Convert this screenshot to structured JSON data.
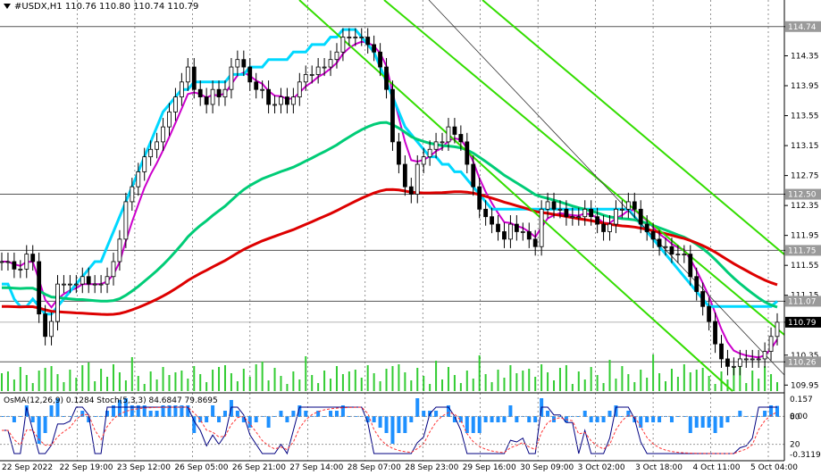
{
  "header": {
    "symbol": "#USDX,H1",
    "ohlc": "110.76 110.80 110.74 110.79"
  },
  "indicator": {
    "label": "OsMA(12,26,9) 0.1284 Stoch(5,3,3) 84.6847 79.8695",
    "axis_labels": [
      "0.157",
      "80",
      "0.00",
      "20",
      "-0.3119"
    ]
  },
  "chart_data": {
    "type": "line",
    "title": "#USDX,H1",
    "x_tick_labels": [
      "22 Sep 2022",
      "22 Sep 19:00",
      "23 Sep 12:00",
      "26 Sep 05:00",
      "26 Sep 21:00",
      "27 Sep 14:00",
      "28 Sep 07:00",
      "28 Sep 23:00",
      "29 Sep 16:00",
      "30 Sep 09:00",
      "3 Oct 02:00",
      "3 Oct 18:00",
      "4 Oct 11:00",
      "5 Oct 04:00"
    ],
    "y_tick_labels": [
      "114.74",
      "114.35",
      "113.95",
      "113.55",
      "113.15",
      "112.75",
      "112.50",
      "112.35",
      "111.95",
      "111.75",
      "111.55",
      "111.15",
      "111.07",
      "110.79",
      "110.35",
      "110.26",
      "109.95"
    ],
    "ylim": [
      109.87,
      115.0
    ],
    "horizontal_levels": [
      {
        "value": 114.74,
        "label": "114.74"
      },
      {
        "value": 112.5,
        "label": "112.50"
      },
      {
        "value": 111.75,
        "label": "111.75"
      },
      {
        "value": 111.07,
        "label": "111.07"
      },
      {
        "value": 110.26,
        "label": "110.26"
      }
    ],
    "current_price": {
      "value": 110.79,
      "label": "110.79"
    },
    "colors": {
      "candles": "#000000",
      "ema_fast": "#cc00cc",
      "ema_mid": "#00d8ff",
      "ema_slow": "#00cc77",
      "ema_long": "#dd0000",
      "channel": "#33dd00",
      "volume": "#33cc33",
      "osma": "#1e90ff",
      "stoch_main": "#000080",
      "stoch_signal": "#ff3333"
    },
    "series": [
      {
        "name": "close",
        "values": [
          111.6,
          111.6,
          111.5,
          111.5,
          111.7,
          111.6,
          110.9,
          110.6,
          110.8,
          111.3,
          111.3,
          111.3,
          111.3,
          111.4,
          111.3,
          111.3,
          111.3,
          111.4,
          111.6,
          111.9,
          112.4,
          112.6,
          112.8,
          113.0,
          113.1,
          113.2,
          113.4,
          113.6,
          113.8,
          114.0,
          114.2,
          113.9,
          113.8,
          113.7,
          113.9,
          113.8,
          113.9,
          114.2,
          114.3,
          114.2,
          114.0,
          113.9,
          113.9,
          113.7,
          113.7,
          113.8,
          113.7,
          113.8,
          114.0,
          114.1,
          114.1,
          114.2,
          114.2,
          114.3,
          114.4,
          114.6,
          114.6,
          114.6,
          114.6,
          114.5,
          114.4,
          114.2,
          113.9,
          113.2,
          112.9,
          112.6,
          112.5,
          112.9,
          113.0,
          113.1,
          113.2,
          113.2,
          113.4,
          113.3,
          113.2,
          112.9,
          112.6,
          112.3,
          112.2,
          112.1,
          112.0,
          111.9,
          112.1,
          112.0,
          112.0,
          111.9,
          111.8,
          112.3,
          112.4,
          112.3,
          112.3,
          112.2,
          112.2,
          112.2,
          112.3,
          112.2,
          112.1,
          112.0,
          112.1,
          112.3,
          112.3,
          112.4,
          112.3,
          112.1,
          112.0,
          111.9,
          111.8,
          111.8,
          111.7,
          111.7,
          111.7,
          111.4,
          111.2,
          111.0,
          110.8,
          110.5,
          110.3,
          110.2,
          110.2,
          110.3,
          110.3,
          110.3,
          110.3,
          110.4,
          110.6,
          110.79
        ]
      },
      {
        "name": "EMA",
        "values": [
          111.3,
          111.3,
          111.1,
          111.0,
          111.0,
          111.1,
          111.0,
          110.9,
          110.9,
          111.0,
          111.1,
          111.2,
          111.3,
          111.4,
          111.5,
          111.6,
          111.6,
          111.8,
          112.0,
          112.2,
          112.4,
          112.6,
          112.8,
          113.0,
          113.2,
          113.4,
          113.6,
          113.7,
          113.8,
          113.9,
          113.9,
          114.0,
          114.0,
          114.0,
          114.0,
          114.0,
          114.0,
          114.1,
          114.1,
          114.1,
          114.2,
          114.2,
          114.2,
          114.3,
          114.3,
          114.3,
          114.3,
          114.4,
          114.4,
          114.4,
          114.5,
          114.5,
          114.5,
          114.6,
          114.6,
          114.7,
          114.7,
          114.7,
          114.6,
          114.5,
          114.4,
          114.2,
          114.0,
          113.8,
          113.6,
          113.4,
          113.3,
          113.2,
          113.1,
          113.0,
          113.0,
          112.9,
          112.9,
          112.8,
          112.8,
          112.7,
          112.6,
          112.5,
          112.4,
          112.3,
          112.3,
          112.3,
          112.3,
          112.3,
          112.3,
          112.3,
          112.3,
          112.3,
          112.3,
          112.3,
          112.3,
          112.3,
          112.3,
          112.3,
          112.3,
          112.3,
          112.3,
          112.3,
          112.3,
          112.3,
          112.3,
          112.3,
          112.2,
          112.1,
          112.0,
          111.9,
          111.8,
          111.7,
          111.6,
          111.5,
          111.4,
          111.3,
          111.2,
          111.1,
          111.0,
          111.0,
          111.0,
          111.0,
          111.0,
          111.0,
          111.0,
          111.0,
          111.0,
          111.0,
          111.0,
          111.07
        ]
      }
    ],
    "grid": true
  }
}
